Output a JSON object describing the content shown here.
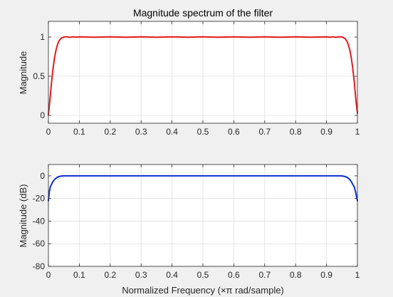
{
  "figure": {
    "background": "#f0f0f0",
    "axes_background": "#ffffff",
    "grid_color": "#dfdfdf",
    "axis_color": "#262626"
  },
  "chart_data": [
    {
      "type": "line",
      "title": "Magnitude spectrum of the filter",
      "xlabel": "",
      "ylabel": "Magnitude",
      "xlim": [
        0,
        1
      ],
      "ylim": [
        -0.1,
        1.2
      ],
      "xticks": [
        0,
        0.1,
        0.2,
        0.3,
        0.4,
        0.5,
        0.6,
        0.7,
        0.8,
        0.9,
        1
      ],
      "xtick_labels": [
        "0",
        "0.1",
        "0.2",
        "0.3",
        "0.4",
        "0.5",
        "0.6",
        "0.7",
        "0.8",
        "0.9",
        "1"
      ],
      "yticks": [
        0,
        0.5,
        1
      ],
      "ytick_labels": [
        "0",
        "0.5",
        "1"
      ],
      "grid": true,
      "series": [
        {
          "color": "#e31a1c",
          "x": [
            0,
            0.005,
            0.01,
            0.015,
            0.02,
            0.025,
            0.03,
            0.035,
            0.04,
            0.045,
            0.05,
            0.055,
            0.06,
            0.07,
            0.08,
            0.09,
            0.1,
            0.15,
            0.2,
            0.25,
            0.3,
            0.35,
            0.4,
            0.45,
            0.5,
            0.55,
            0.6,
            0.65,
            0.7,
            0.75,
            0.8,
            0.85,
            0.9,
            0.91,
            0.92,
            0.93,
            0.94,
            0.945,
            0.95,
            0.955,
            0.96,
            0.965,
            0.97,
            0.975,
            0.98,
            0.985,
            0.99,
            0.995,
            1
          ],
          "y": [
            0.01,
            0.2,
            0.42,
            0.6,
            0.74,
            0.84,
            0.91,
            0.955,
            0.98,
            0.993,
            1.0,
            1.004,
            1.002,
            0.996,
            1.003,
            0.998,
            1.002,
            0.998,
            1.002,
            0.998,
            1.002,
            0.998,
            1.002,
            0.998,
            1.002,
            0.998,
            1.002,
            0.998,
            1.002,
            0.998,
            1.002,
            0.998,
            1.002,
            0.998,
            1.003,
            0.996,
            1.002,
            1.004,
            1.0,
            0.993,
            0.98,
            0.955,
            0.91,
            0.84,
            0.74,
            0.6,
            0.42,
            0.2,
            0.03
          ]
        }
      ]
    },
    {
      "type": "line",
      "title": "",
      "xlabel": "Normalized Frequency (×π rad/sample)",
      "ylabel": "Magnitude (dB)",
      "xlim": [
        0,
        1
      ],
      "ylim": [
        -80,
        10
      ],
      "xticks": [
        0,
        0.1,
        0.2,
        0.3,
        0.4,
        0.5,
        0.6,
        0.7,
        0.8,
        0.9,
        1
      ],
      "xtick_labels": [
        "0",
        "0.1",
        "0.2",
        "0.3",
        "0.4",
        "0.5",
        "0.6",
        "0.7",
        "0.8",
        "0.9",
        "1"
      ],
      "yticks": [
        -80,
        -60,
        -40,
        -20,
        0
      ],
      "ytick_labels": [
        "-80",
        "-60",
        "-40",
        "-20",
        "0"
      ],
      "grid": true,
      "series": [
        {
          "color": "#0b2fd6",
          "x": [
            0,
            0.003,
            0.006,
            0.01,
            0.015,
            0.02,
            0.025,
            0.03,
            0.035,
            0.04,
            0.045,
            0.05,
            0.06,
            0.1,
            0.2,
            0.3,
            0.4,
            0.5,
            0.6,
            0.7,
            0.8,
            0.9,
            0.94,
            0.95,
            0.955,
            0.96,
            0.965,
            0.97,
            0.975,
            0.98,
            0.985,
            0.99,
            0.994,
            0.997,
            1
          ],
          "y": [
            -22,
            -14,
            -10,
            -7.5,
            -5,
            -3.2,
            -2,
            -1.1,
            -0.6,
            -0.3,
            -0.1,
            0,
            0,
            0,
            0,
            0,
            0,
            0,
            0,
            0,
            0,
            0,
            0,
            -0.1,
            -0.3,
            -0.6,
            -1.1,
            -2,
            -3.2,
            -5,
            -7.5,
            -10,
            -14,
            -18,
            -22
          ]
        }
      ]
    }
  ]
}
